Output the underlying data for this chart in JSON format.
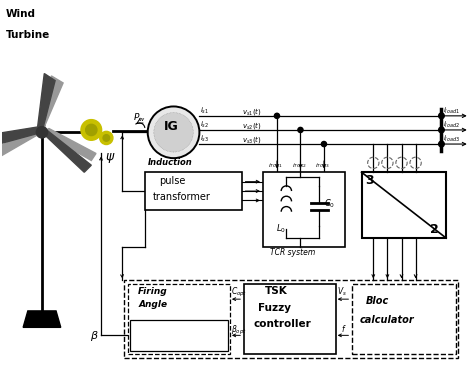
{
  "bg_color": "#ffffff",
  "fig_width": 4.74,
  "fig_height": 3.68,
  "dpi": 100,
  "xlim": [
    0,
    10
  ],
  "ylim": [
    0,
    7.8
  ]
}
